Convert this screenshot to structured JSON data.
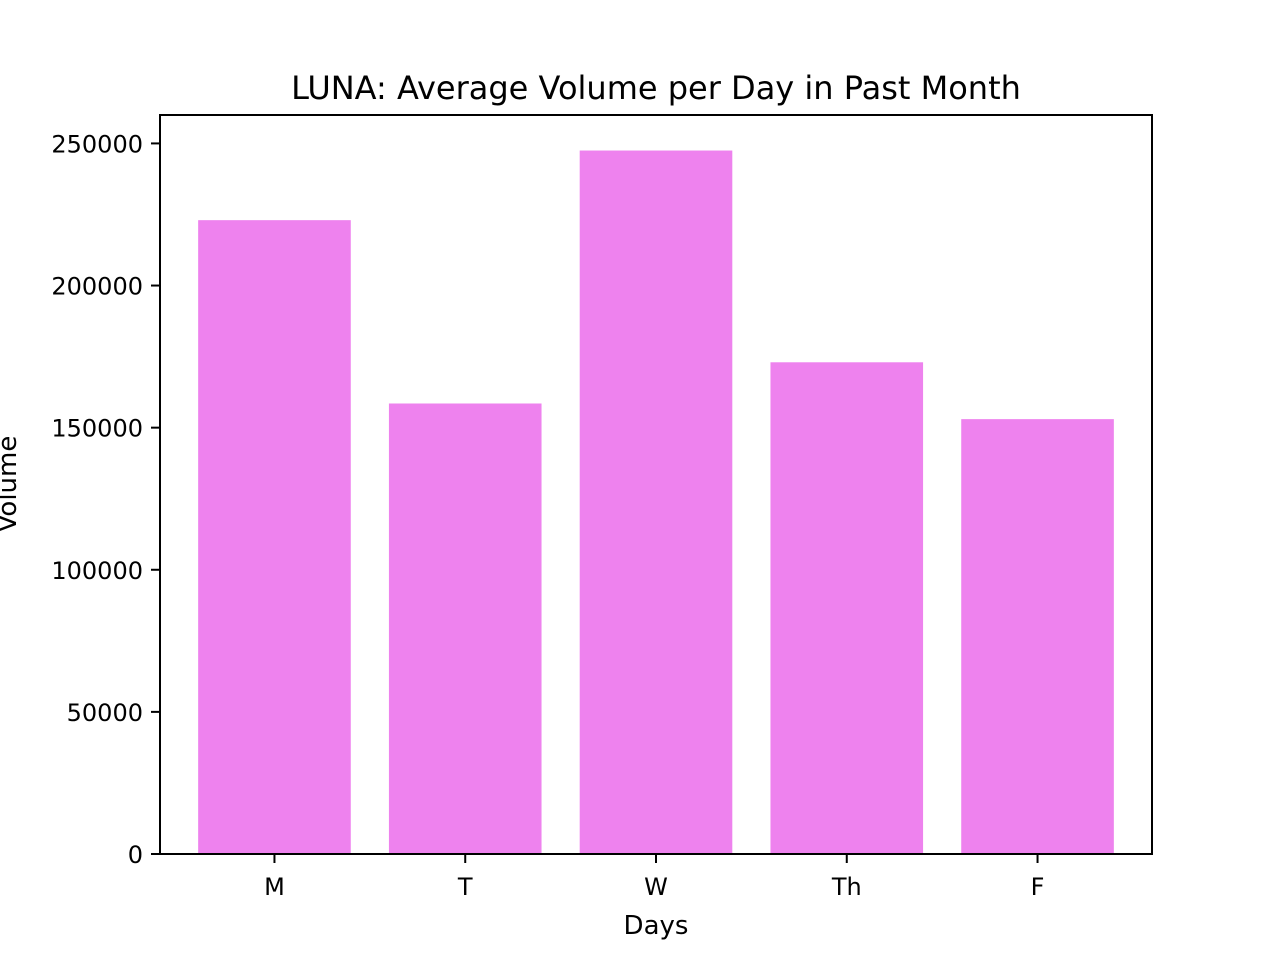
{
  "chart_data": {
    "type": "bar",
    "title": "LUNA: Average Volume per Day in Past Month",
    "xlabel": "Days",
    "ylabel": "Volume",
    "categories": [
      "M",
      "T",
      "W",
      "Th",
      "F"
    ],
    "values": [
      223000,
      158500,
      247500,
      173000,
      153000
    ],
    "ylim": [
      0,
      260000
    ],
    "yticks": [
      0,
      50000,
      100000,
      150000,
      200000,
      250000
    ],
    "ytick_labels": [
      "0",
      "50000",
      "100000",
      "150000",
      "200000",
      "250000"
    ],
    "grid": false,
    "legend": "none",
    "bar_color": "#ee82ee"
  }
}
